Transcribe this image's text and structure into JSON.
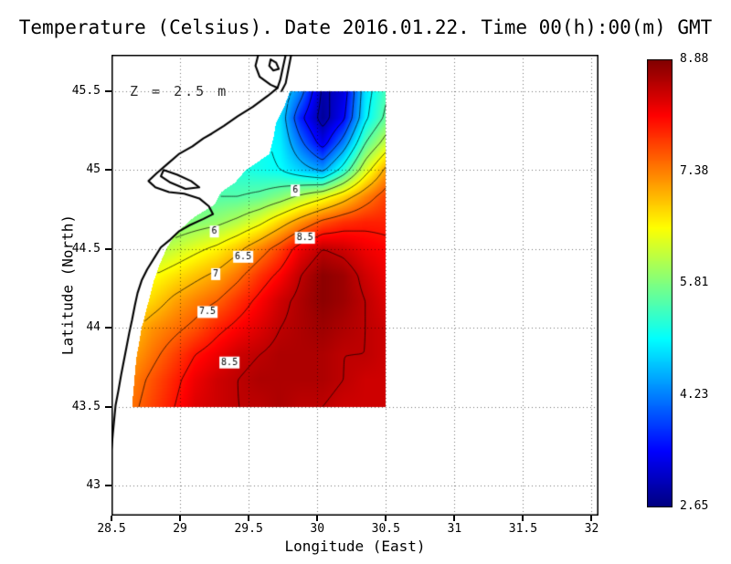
{
  "title": "Temperature (Celsius). Date 2016.01.22. Time 00(h):00(m) GMT",
  "annotation": "Z = 2.5 m",
  "axes": {
    "xlabel": "Longitude (East)",
    "ylabel": "Latitude (North)",
    "xticks": [
      28.5,
      29,
      29.5,
      30,
      30.5,
      31,
      31.5,
      32
    ],
    "xtick_labels": [
      "28.5",
      "29",
      "29.5",
      "30",
      "30.5",
      "31",
      "31.5",
      "32"
    ],
    "yticks": [
      43,
      43.5,
      44,
      44.5,
      45,
      45.5
    ],
    "ytick_labels": [
      "43",
      "43.5",
      "44",
      "44.5",
      "45",
      "45.5"
    ],
    "xlim": [
      28.5,
      32.05
    ],
    "ylim": [
      42.81,
      45.73
    ]
  },
  "colorbar": {
    "min": 2.65,
    "max": 8.88,
    "tick_values": [
      8.88,
      7.38,
      5.81,
      4.23,
      2.65
    ],
    "tick_labels": [
      "8.88",
      "7.38",
      "5.81",
      "4.23",
      "2.65"
    ]
  },
  "colors": {
    "contour": "#000000",
    "coast": "#000000",
    "grid": "rgba(0,0,0,0.55)",
    "frame": "#000000"
  },
  "chart_data": {
    "type": "heatmap",
    "title": "Temperature (Celsius). Date 2016.01.22. Time 00(h):00(m) GMT",
    "units": "Celsius",
    "depth_label": "Z = 2.5 m",
    "date": "2016.01.22",
    "time": "00(h):00(m) GMT",
    "xlabel": "Longitude (East)",
    "ylabel": "Latitude (North)",
    "value_range": [
      2.65,
      8.88
    ],
    "lon_range": [
      28.65,
      30.5
    ],
    "lat_range": [
      43.5,
      45.5
    ],
    "lon": [
      28.65,
      28.8,
      28.96,
      29.11,
      29.27,
      29.42,
      29.58,
      29.73,
      29.88,
      30.04,
      30.19,
      30.35,
      30.5
    ],
    "lat": [
      45.5,
      45.33,
      45.17,
      45.0,
      44.83,
      44.67,
      44.5,
      44.33,
      44.17,
      44.0,
      43.83,
      43.67,
      43.5
    ],
    "temperature": [
      [
        5.2,
        5.2,
        5.2,
        5.2,
        5.2,
        5.2,
        5.1,
        4.9,
        4.2,
        2.9,
        3.2,
        4.8,
        5.4
      ],
      [
        5.2,
        5.2,
        5.2,
        5.2,
        5.2,
        5.2,
        5.1,
        4.8,
        3.6,
        2.8,
        3.4,
        4.9,
        5.6
      ],
      [
        5.3,
        5.3,
        5.3,
        5.3,
        5.3,
        5.2,
        5.1,
        4.9,
        4.1,
        3.3,
        4.2,
        5.5,
        6.2
      ],
      [
        5.4,
        5.4,
        5.4,
        5.4,
        5.3,
        5.2,
        5.1,
        5.0,
        4.7,
        4.4,
        5.2,
        6.3,
        7.1
      ],
      [
        5.5,
        5.5,
        5.5,
        5.5,
        5.5,
        5.5,
        5.6,
        5.8,
        6.1,
        6.4,
        6.8,
        7.3,
        7.7
      ],
      [
        5.7,
        5.7,
        5.7,
        5.8,
        5.9,
        6.1,
        6.4,
        6.8,
        7.2,
        7.6,
        7.8,
        7.9,
        7.9
      ],
      [
        5.9,
        6.0,
        6.2,
        6.4,
        6.6,
        6.9,
        7.3,
        7.7,
        8.2,
        8.5,
        8.4,
        8.2,
        8.1
      ],
      [
        6.3,
        6.5,
        6.7,
        6.9,
        7.1,
        7.4,
        7.8,
        8.1,
        8.5,
        8.8,
        8.7,
        8.4,
        8.2
      ],
      [
        6.6,
        6.8,
        7.1,
        7.3,
        7.5,
        7.8,
        8.1,
        8.4,
        8.6,
        8.8,
        8.7,
        8.5,
        8.3
      ],
      [
        6.9,
        7.2,
        7.4,
        7.6,
        7.9,
        8.1,
        8.3,
        8.5,
        8.6,
        8.7,
        8.6,
        8.5,
        8.4
      ],
      [
        7.1,
        7.4,
        7.7,
        8.0,
        8.2,
        8.4,
        8.5,
        8.6,
        8.6,
        8.6,
        8.5,
        8.5,
        8.4
      ],
      [
        7.3,
        7.6,
        7.9,
        8.2,
        8.4,
        8.5,
        8.6,
        8.6,
        8.6,
        8.6,
        8.5,
        8.4,
        8.4
      ],
      [
        7.4,
        7.7,
        8.0,
        8.3,
        8.4,
        8.5,
        8.5,
        8.6,
        8.5,
        8.5,
        8.4,
        8.4,
        8.4
      ]
    ],
    "mask_west_boundary": [
      [
        45.5,
        29.8
      ],
      [
        45.4,
        29.76
      ],
      [
        45.3,
        29.7
      ],
      [
        45.2,
        29.68
      ],
      [
        45.1,
        29.65
      ],
      [
        45.0,
        29.48
      ],
      [
        44.92,
        29.4
      ],
      [
        44.86,
        29.3
      ],
      [
        44.78,
        29.25
      ],
      [
        44.7,
        29.1
      ],
      [
        44.6,
        28.97
      ],
      [
        44.5,
        28.9
      ],
      [
        44.4,
        28.85
      ],
      [
        44.3,
        28.81
      ],
      [
        44.2,
        28.78
      ],
      [
        44.1,
        28.75
      ],
      [
        44.0,
        28.72
      ],
      [
        43.9,
        28.7
      ],
      [
        43.8,
        28.68
      ],
      [
        43.7,
        28.67
      ],
      [
        43.6,
        28.66
      ],
      [
        43.5,
        28.65
      ]
    ],
    "contour_levels": [
      3,
      3.5,
      4,
      4.5,
      5,
      5.5,
      6,
      6.5,
      7,
      7.5,
      8,
      8.5
    ],
    "contour_labels": [
      {
        "value": "6",
        "lon": 29.84,
        "lat": 44.87
      },
      {
        "value": "6",
        "lon": 29.25,
        "lat": 44.61
      },
      {
        "value": "6.5",
        "lon": 29.46,
        "lat": 44.45
      },
      {
        "value": "7",
        "lon": 29.26,
        "lat": 44.34
      },
      {
        "value": "7.5",
        "lon": 29.2,
        "lat": 44.1
      },
      {
        "value": "8.5",
        "lon": 29.91,
        "lat": 44.57
      },
      {
        "value": "8.5",
        "lon": 29.36,
        "lat": 43.78
      }
    ],
    "coastline": [
      {
        "name": "main-coast",
        "points": [
          [
            29.57,
            45.73
          ],
          [
            29.55,
            45.66
          ],
          [
            29.58,
            45.59
          ],
          [
            29.66,
            45.54
          ],
          [
            29.71,
            45.52
          ],
          [
            29.64,
            45.47
          ],
          [
            29.53,
            45.4
          ],
          [
            29.42,
            45.34
          ],
          [
            29.32,
            45.28
          ],
          [
            29.23,
            45.23
          ],
          [
            29.17,
            45.2
          ],
          [
            29.09,
            45.15
          ],
          [
            28.99,
            45.1
          ],
          [
            28.91,
            45.04
          ],
          [
            28.83,
            44.98
          ],
          [
            28.77,
            44.93
          ],
          [
            28.82,
            44.89
          ],
          [
            28.92,
            44.86
          ],
          [
            29.03,
            44.85
          ],
          [
            29.14,
            44.82
          ],
          [
            29.21,
            44.77
          ],
          [
            29.24,
            44.72
          ],
          [
            29.17,
            44.69
          ],
          [
            29.07,
            44.65
          ],
          [
            28.99,
            44.61
          ],
          [
            28.93,
            44.56
          ],
          [
            28.86,
            44.51
          ],
          [
            28.81,
            44.44
          ],
          [
            28.76,
            44.37
          ],
          [
            28.72,
            44.3
          ],
          [
            28.69,
            44.22
          ],
          [
            28.67,
            44.14
          ],
          [
            28.65,
            44.05
          ],
          [
            28.63,
            43.97
          ],
          [
            28.61,
            43.88
          ],
          [
            28.59,
            43.79
          ],
          [
            28.57,
            43.7
          ],
          [
            28.55,
            43.6
          ],
          [
            28.53,
            43.51
          ],
          [
            28.52,
            43.42
          ],
          [
            28.51,
            43.33
          ],
          [
            28.5,
            43.23
          ]
        ]
      },
      {
        "name": "estuary-west",
        "points": [
          [
            29.71,
            45.52
          ],
          [
            29.73,
            45.57
          ],
          [
            29.75,
            45.65
          ],
          [
            29.77,
            45.73
          ]
        ]
      },
      {
        "name": "estuary-east",
        "points": [
          [
            29.81,
            45.73
          ],
          [
            29.79,
            45.64
          ],
          [
            29.77,
            45.55
          ],
          [
            29.74,
            45.5
          ]
        ]
      },
      {
        "name": "delta-lake",
        "points": [
          [
            28.88,
            45.0
          ],
          [
            28.98,
            44.97
          ],
          [
            29.08,
            44.93
          ],
          [
            29.14,
            44.89
          ],
          [
            29.04,
            44.88
          ],
          [
            28.93,
            44.92
          ],
          [
            28.86,
            44.96
          ],
          [
            28.88,
            45.0
          ]
        ]
      },
      {
        "name": "islet",
        "points": [
          [
            29.66,
            45.7
          ],
          [
            29.7,
            45.68
          ],
          [
            29.72,
            45.64
          ],
          [
            29.68,
            45.63
          ],
          [
            29.65,
            45.66
          ],
          [
            29.66,
            45.7
          ]
        ]
      }
    ]
  }
}
